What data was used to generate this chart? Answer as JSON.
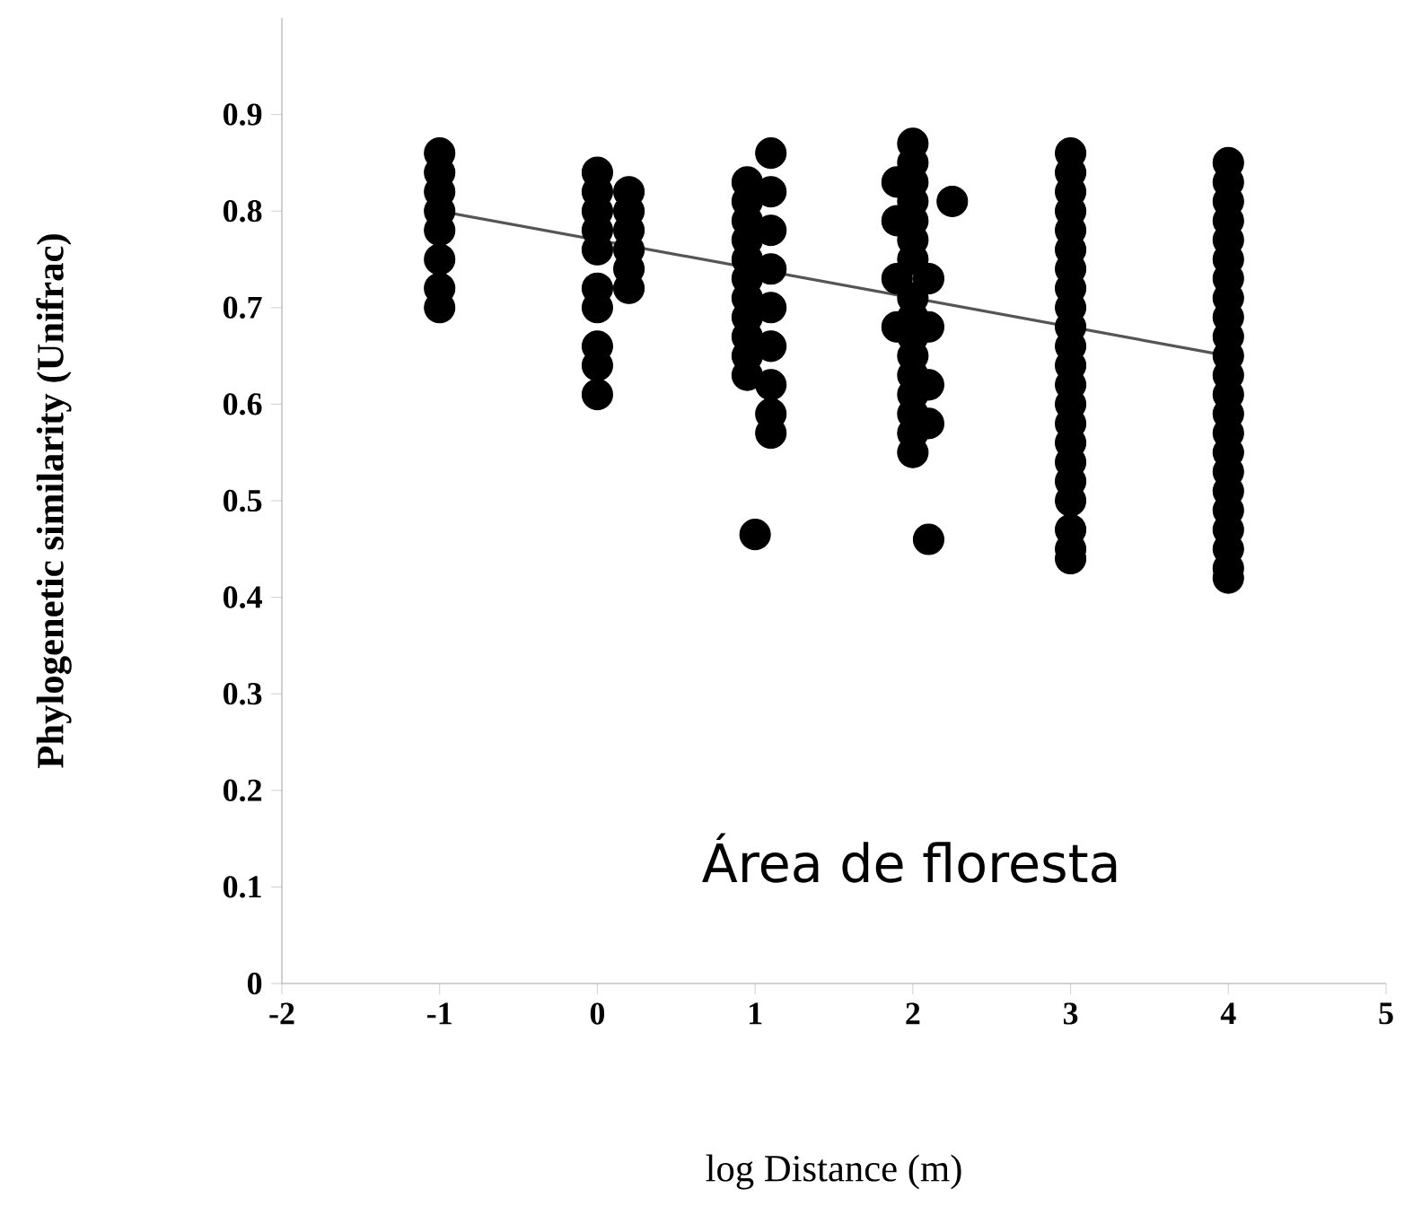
{
  "chart_data": {
    "type": "scatter",
    "xlabel": "log Distance (m)",
    "ylabel": "Phylogenetic similarity (Unifrac)",
    "annotations": [
      "Área de floresta"
    ],
    "xlim": [
      -2,
      5
    ],
    "xticks": [
      -2,
      -1,
      0,
      1,
      2,
      3,
      4,
      5
    ],
    "ylim": [
      0,
      1
    ],
    "yticks": [
      0,
      0.1,
      0.2,
      0.3,
      0.4,
      0.5,
      0.6,
      0.7,
      0.8,
      0.9
    ],
    "grid": false,
    "legend": false,
    "series": [
      {
        "color": "#000000",
        "marker": "circle",
        "x": [
          -1,
          -1,
          -1,
          -1,
          -1,
          -1,
          -1,
          -1,
          0,
          0,
          0,
          0,
          0,
          0,
          0,
          0,
          0,
          0,
          0.2,
          0.2,
          0.2,
          0.2,
          0.2,
          0.2,
          0.95,
          0.95,
          0.95,
          0.95,
          0.95,
          0.95,
          0.95,
          0.95,
          0.95,
          0.95,
          0.95,
          1.1,
          1.1,
          1.1,
          1.1,
          1.1,
          1.1,
          1.1,
          1.1,
          1.1,
          1,
          2,
          2,
          2,
          2,
          2,
          2,
          2,
          2,
          2,
          2,
          2,
          2,
          2,
          2,
          2,
          2,
          1.9,
          1.9,
          1.9,
          1.9,
          2.1,
          2.1,
          2.1,
          2.1,
          2.25,
          2.1,
          3,
          3,
          3,
          3,
          3,
          3,
          3,
          3,
          3,
          3,
          3,
          3,
          3,
          3,
          3,
          3,
          3,
          3,
          3,
          3,
          3,
          3,
          4,
          4,
          4,
          4,
          4,
          4,
          4,
          4,
          4,
          4,
          4,
          4,
          4,
          4,
          4,
          4,
          4,
          4,
          4,
          4,
          4,
          4,
          4
        ],
        "values": [
          0.86,
          0.84,
          0.82,
          0.8,
          0.78,
          0.75,
          0.72,
          0.7,
          0.84,
          0.82,
          0.8,
          0.78,
          0.76,
          0.72,
          0.7,
          0.66,
          0.64,
          0.61,
          0.82,
          0.8,
          0.78,
          0.76,
          0.74,
          0.72,
          0.83,
          0.81,
          0.79,
          0.77,
          0.75,
          0.73,
          0.71,
          0.69,
          0.67,
          0.65,
          0.63,
          0.86,
          0.82,
          0.78,
          0.74,
          0.7,
          0.66,
          0.62,
          0.59,
          0.57,
          0.465,
          0.87,
          0.85,
          0.83,
          0.81,
          0.79,
          0.77,
          0.75,
          0.71,
          0.69,
          0.67,
          0.65,
          0.63,
          0.61,
          0.59,
          0.57,
          0.55,
          0.83,
          0.79,
          0.73,
          0.68,
          0.73,
          0.68,
          0.62,
          0.58,
          0.81,
          0.46,
          0.86,
          0.84,
          0.82,
          0.8,
          0.78,
          0.76,
          0.74,
          0.72,
          0.7,
          0.68,
          0.66,
          0.64,
          0.62,
          0.6,
          0.58,
          0.56,
          0.54,
          0.52,
          0.5,
          0.47,
          0.45,
          0.44,
          0.85,
          0.83,
          0.81,
          0.79,
          0.77,
          0.75,
          0.73,
          0.71,
          0.69,
          0.67,
          0.65,
          0.63,
          0.61,
          0.59,
          0.57,
          0.55,
          0.53,
          0.51,
          0.49,
          0.47,
          0.45,
          0.43,
          0.42
        ]
      },
      {
        "type": "line",
        "color": "#555555",
        "marker": "none",
        "x": [
          -1,
          4
        ],
        "values": [
          0.8,
          0.65
        ]
      }
    ]
  }
}
